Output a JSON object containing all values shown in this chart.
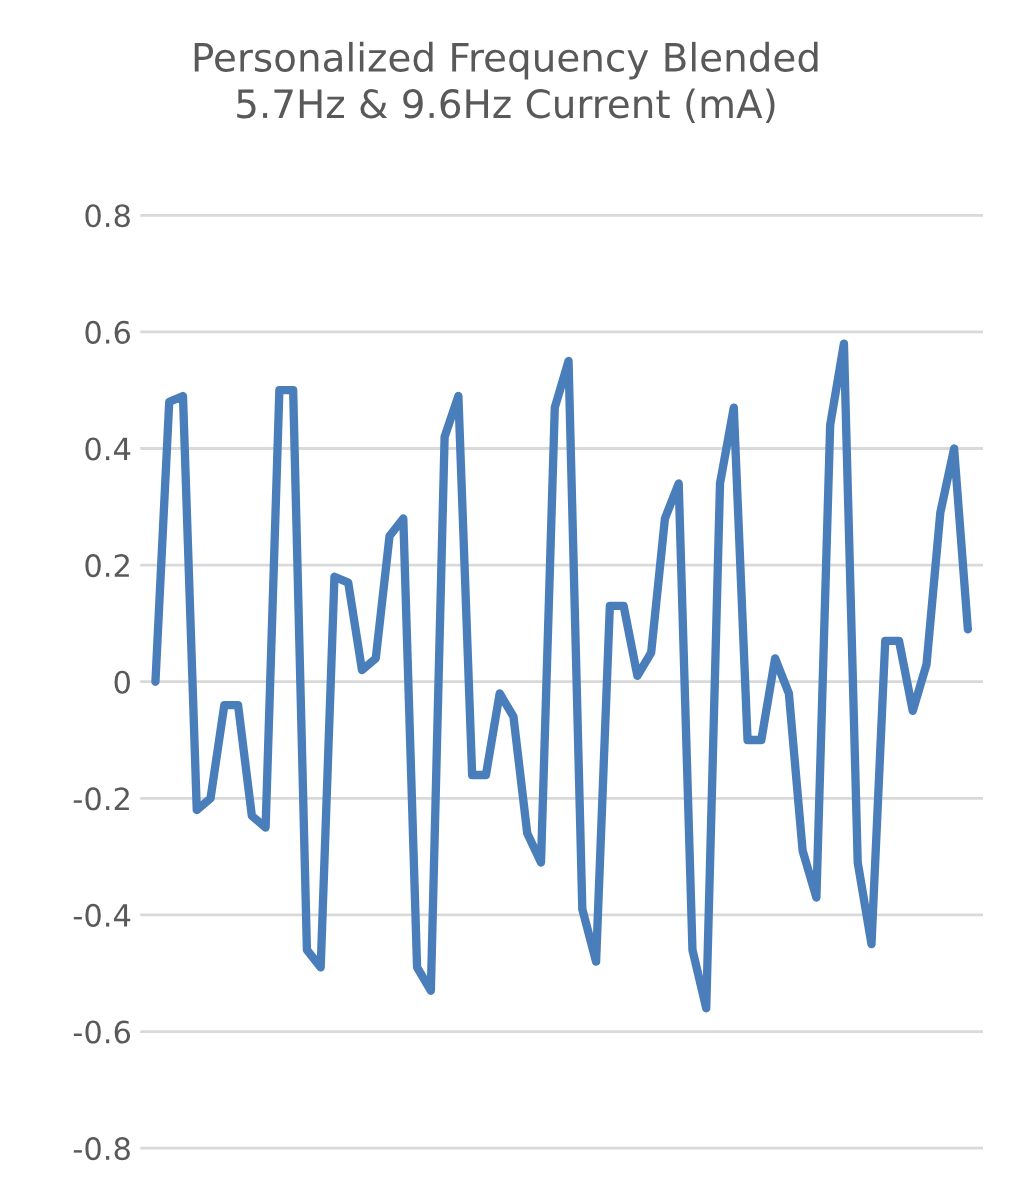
{
  "chart_data": {
    "type": "line",
    "title": "Personalized Frequency Blended\n5.7Hz & 9.6Hz Current (mA)",
    "categories": [
      null,
      null,
      null,
      null,
      null,
      null,
      null,
      null,
      null,
      null,
      null,
      null,
      null,
      null,
      null,
      null,
      null,
      null,
      null,
      null,
      null,
      null,
      null,
      null,
      null,
      null,
      null,
      null,
      null,
      null,
      null,
      null,
      null,
      null,
      null,
      null,
      null,
      null,
      null,
      null,
      null,
      null,
      null,
      null,
      null,
      null,
      null,
      null,
      null,
      null,
      null,
      null,
      null,
      null,
      null,
      null,
      null,
      null,
      null,
      null
    ],
    "series": [
      {
        "color": "#4a7ebb",
        "values": [
          0,
          0.48,
          0.49,
          -0.22,
          -0.2,
          -0.04,
          -0.04,
          -0.23,
          -0.25,
          0.5,
          0.5,
          -0.46,
          -0.49,
          0.18,
          0.17,
          0.02,
          0.04,
          0.25,
          0.28,
          -0.49,
          -0.53,
          0.42,
          0.49,
          -0.16,
          -0.16,
          -0.02,
          -0.06,
          -0.26,
          -0.31,
          0.47,
          0.55,
          -0.39,
          -0.48,
          0.13,
          0.13,
          0.01,
          0.05,
          0.28,
          0.34,
          -0.46,
          -0.56,
          0.34,
          0.47,
          -0.1,
          -0.1,
          0.04,
          -0.02,
          -0.29,
          -0.37,
          0.44,
          0.58,
          -0.31,
          -0.45,
          0.07,
          0.07,
          -0.05,
          0.03,
          0.29,
          0.4,
          0.09
        ]
      }
    ],
    "ylim": [
      -0.8,
      0.8
    ],
    "yticks": [
      {
        "value": -0.8,
        "label": "-0.8"
      },
      {
        "value": -0.6,
        "label": "-0.6"
      },
      {
        "value": -0.4,
        "label": "-0.4"
      },
      {
        "value": -0.2,
        "label": "-0.2"
      },
      0,
      0.2,
      0.4,
      0.6,
      0.8
    ],
    "grid": "y",
    "tick_labels": "y",
    "line_style": "solid"
  }
}
